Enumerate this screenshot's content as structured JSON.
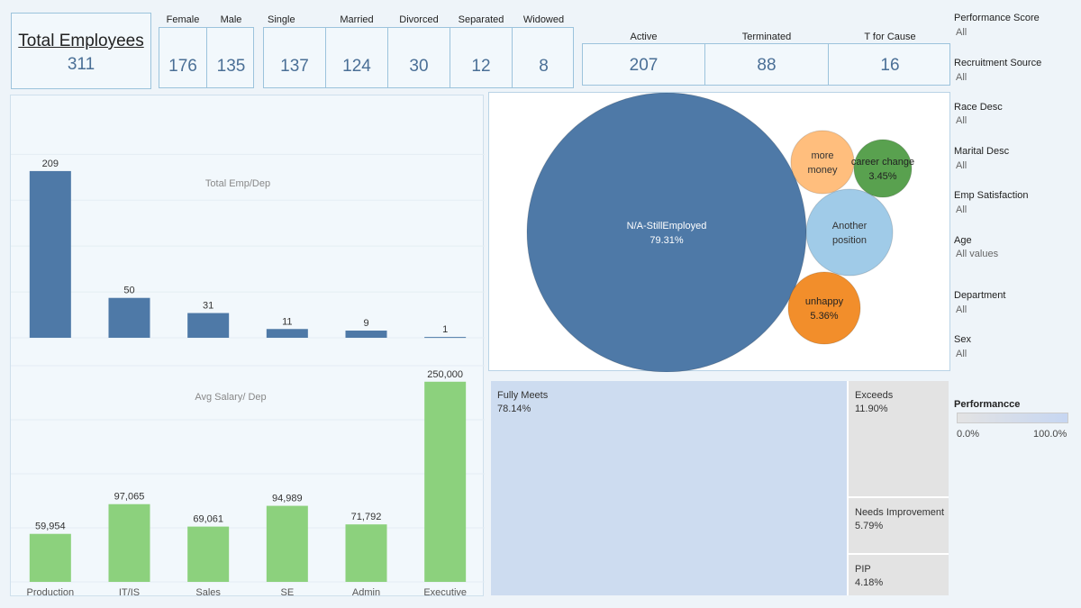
{
  "kpi": {
    "total": {
      "label": "Total Employees",
      "value": "311"
    },
    "sex": [
      {
        "label": "Female",
        "value": "176"
      },
      {
        "label": "Male",
        "value": "135"
      }
    ],
    "marital": [
      {
        "label": "Single",
        "value": "137"
      },
      {
        "label": "Married",
        "value": "124"
      },
      {
        "label": "Divorced",
        "value": "30"
      },
      {
        "label": "Separated",
        "value": "12"
      },
      {
        "label": "Widowed",
        "value": "8"
      }
    ],
    "status": [
      {
        "label": "Active",
        "value": "207"
      },
      {
        "label": "Terminated",
        "value": "88"
      },
      {
        "label": "T for Cause",
        "value": "16"
      }
    ]
  },
  "filters": [
    {
      "title": "Performance Score",
      "value": "All"
    },
    {
      "title": "Recruitment Source",
      "value": "All"
    },
    {
      "title": "Race Desc",
      "value": "All"
    },
    {
      "title": "Marital Desc",
      "value": "All"
    },
    {
      "title": "Emp Satisfaction",
      "value": "All"
    },
    {
      "title": "Age",
      "value": "All values"
    },
    {
      "title": "Department",
      "value": "All"
    },
    {
      "title": "Sex",
      "value": "All"
    }
  ],
  "legend": {
    "title": "Performancce",
    "min_label": "0.0%",
    "max_label": "100.0%",
    "color_low": "#e3e3e3",
    "color_high": "#c6d6f2"
  },
  "chart_data": [
    {
      "type": "bar",
      "title": "Total Emp/Dep",
      "categories": [
        "Production",
        "IT/IS",
        "Sales",
        "SE",
        "Admin",
        "Executive"
      ],
      "values": [
        209,
        50,
        31,
        11,
        9,
        1
      ],
      "value_labels": [
        "209",
        "50",
        "31",
        "11",
        "9",
        "1"
      ],
      "ylim": [
        0,
        230
      ],
      "color": "#4e79a7",
      "grid": true
    },
    {
      "type": "bar",
      "title": "Avg Salary/ Dep",
      "categories": [
        "Production",
        "IT/IS",
        "Sales",
        "SE",
        "Admin",
        "Executive"
      ],
      "values": [
        59954,
        97065,
        69061,
        94989,
        71792,
        250000
      ],
      "value_labels": [
        "59,954",
        "97,065",
        "69,061",
        "94,989",
        "71,792",
        "250,000"
      ],
      "ylim": [
        0,
        270000
      ],
      "color": "#8cd17d",
      "grid": true
    },
    {
      "type": "bubble",
      "items": [
        {
          "name": "N/A-StillEmployed",
          "label": "79.31%",
          "value": 79.31,
          "color": "#4e79a7",
          "text_color": "#ffffff"
        },
        {
          "name": "more money",
          "label": "",
          "value": 3.6,
          "color": "#ffbe7d",
          "text_color": "#333333"
        },
        {
          "name": "career change",
          "label": "3.45%",
          "value": 3.45,
          "color": "#59a14f",
          "text_color": "#222222"
        },
        {
          "name": "Another position",
          "label": "",
          "value": 6.2,
          "color": "#a0cbe8",
          "text_color": "#333333"
        },
        {
          "name": "unhappy",
          "label": "5.36%",
          "value": 5.36,
          "color": "#f28e2b",
          "text_color": "#222222"
        }
      ]
    },
    {
      "type": "treemap",
      "items": [
        {
          "name": "Fully Meets",
          "label": "78.14%",
          "value": 78.14,
          "color": "#cddcf0"
        },
        {
          "name": "Exceeds",
          "label": "11.90%",
          "value": 11.9,
          "color": "#e3e3e3"
        },
        {
          "name": "Needs Improvement",
          "label": "5.79%",
          "value": 5.79,
          "color": "#e3e3e3"
        },
        {
          "name": "PIP",
          "label": "4.18%",
          "value": 4.18,
          "color": "#e3e3e3"
        }
      ]
    }
  ]
}
